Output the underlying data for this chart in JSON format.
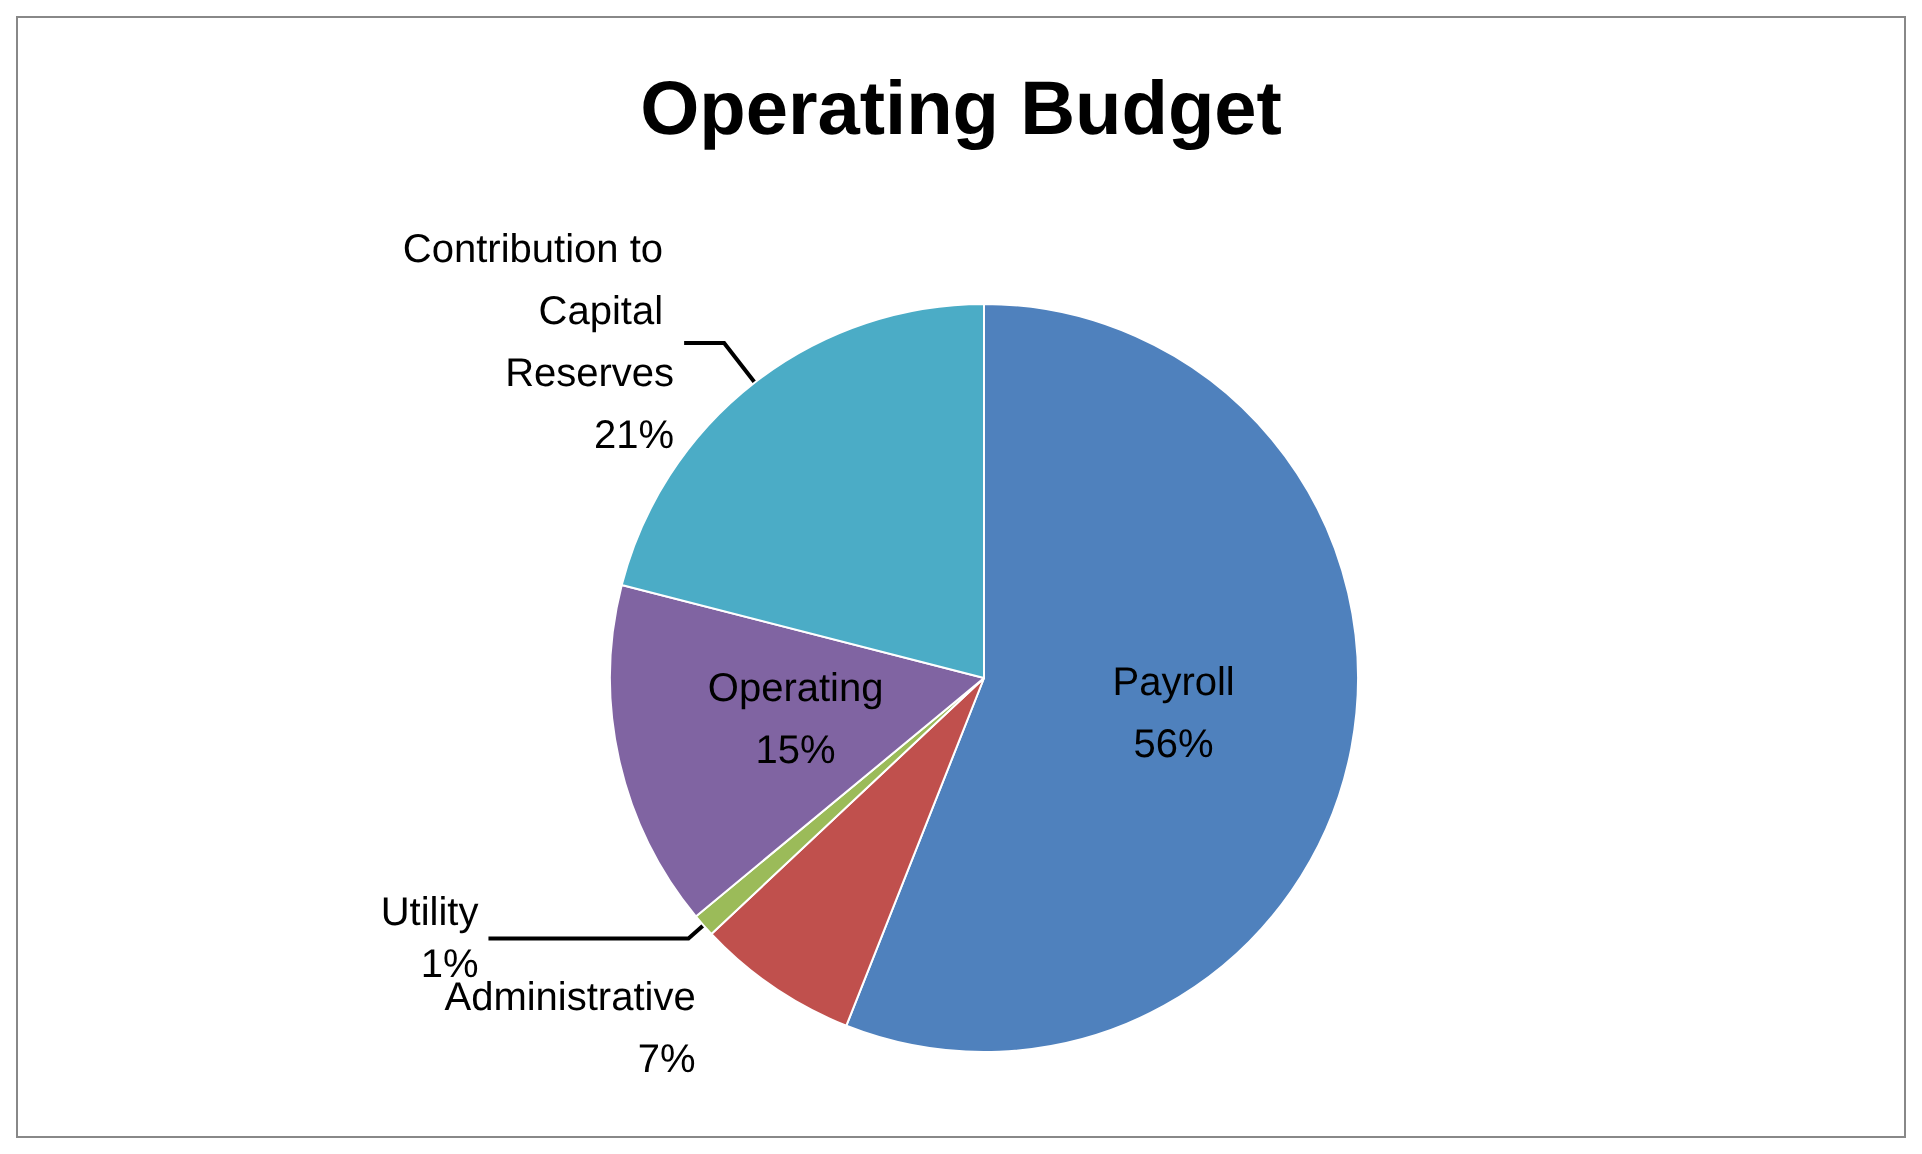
{
  "chart_data": {
    "type": "pie",
    "title": "Operating Budget",
    "categories": [
      "Payroll",
      "Administrative",
      "Utility",
      "Operating",
      "Contribution to Capital Reserves"
    ],
    "values": [
      56,
      7,
      1,
      15,
      21
    ],
    "colors": [
      "#4f81bd",
      "#c0504d",
      "#9bbb59",
      "#8064a2",
      "#4bacc6"
    ],
    "value_labels": [
      "56%",
      "7%",
      "1%",
      "15%",
      "21%"
    ],
    "legend": false
  }
}
